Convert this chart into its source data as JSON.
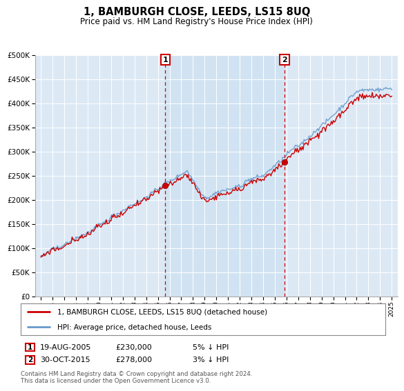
{
  "title": "1, BAMBURGH CLOSE, LEEDS, LS15 8UQ",
  "subtitle": "Price paid vs. HM Land Registry's House Price Index (HPI)",
  "bg_color": "#dce9f5",
  "bg_color_highlight": "#cce0f0",
  "legend_line1": "1, BAMBURGH CLOSE, LEEDS, LS15 8UQ (detached house)",
  "legend_line2": "HPI: Average price, detached house, Leeds",
  "annotation1": {
    "label": "1",
    "date": "19-AUG-2005",
    "price": "£230,000",
    "note": "5% ↓ HPI"
  },
  "annotation2": {
    "label": "2",
    "date": "30-OCT-2015",
    "price": "£278,000",
    "note": "3% ↓ HPI"
  },
  "footer": "Contains HM Land Registry data © Crown copyright and database right 2024.\nThis data is licensed under the Open Government Licence v3.0.",
  "ylim": [
    0,
    500000
  ],
  "yticks": [
    0,
    50000,
    100000,
    150000,
    200000,
    250000,
    300000,
    350000,
    400000,
    450000,
    500000
  ],
  "sale1_x": 2005.63,
  "sale1_y": 230000,
  "sale2_x": 2015.83,
  "sale2_y": 278000,
  "red_line_color": "#cc0000",
  "blue_line_color": "#6699cc",
  "marker_color": "#cc0000",
  "xmin": 1994.5,
  "xmax": 2025.5,
  "start_year": 1995,
  "end_year": 2025
}
